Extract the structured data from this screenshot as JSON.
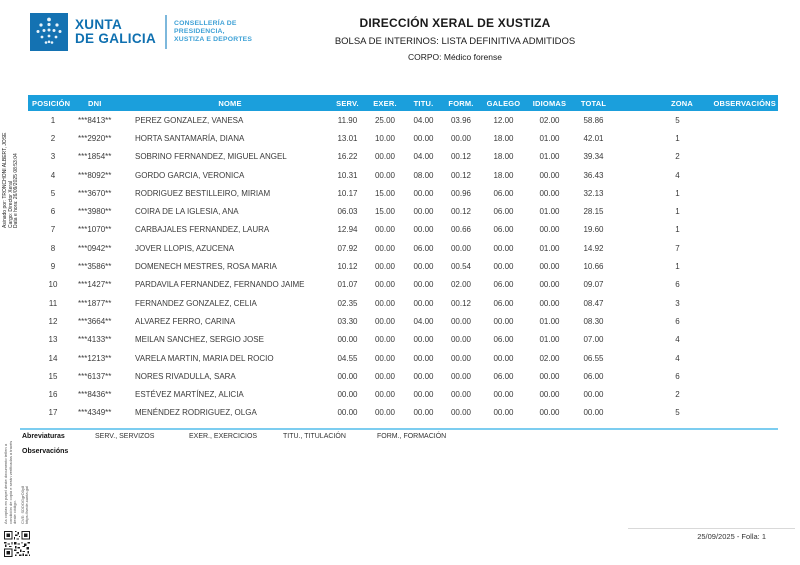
{
  "logo": {
    "brand_line1": "XUNTA",
    "brand_line2": "DE GALICIA",
    "department_lines": [
      "CONSELLERÍA DE",
      "PRESIDENCIA,",
      "XUSTIZA E DEPORTES"
    ]
  },
  "header": {
    "title": "DIRECCIÓN XERAL DE XUSTIZA",
    "subtitle": "BOLSA DE INTERINOS: LISTA DEFINITIVA ADMITIDOS",
    "corpo": "CORPO: Médico forense"
  },
  "signature": {
    "signed_by": "Asinado por: TRONCHONI ALBERT, JOSE",
    "role": "Cargo: Director Xeral",
    "datetime": "Data e hora: 26/09/2025 08:53:04"
  },
  "table": {
    "columns": [
      "POSICIÓN",
      "DNI",
      "NOME",
      "SERV.",
      "EXER.",
      "TITU.",
      "FORM.",
      "GALEGO",
      "IDIOMAS",
      "TOTAL",
      "",
      "ZONA",
      "OBSERVACIÓNS"
    ],
    "rows": [
      [
        "1",
        "***8413**",
        "PEREZ GONZALEZ, VANESA",
        "11.90",
        "25.00",
        "04.00",
        "03.96",
        "12.00",
        "02.00",
        "58.86",
        "",
        "5",
        ""
      ],
      [
        "2",
        "***2920**",
        "HORTA SANTAMARÍA, DIANA",
        "13.01",
        "10.00",
        "00.00",
        "00.00",
        "18.00",
        "01.00",
        "42.01",
        "",
        "1",
        ""
      ],
      [
        "3",
        "***1854**",
        "SOBRINO FERNANDEZ, MIGUEL ANGEL",
        "16.22",
        "00.00",
        "04.00",
        "00.12",
        "18.00",
        "01.00",
        "39.34",
        "",
        "2",
        ""
      ],
      [
        "4",
        "***8092**",
        "GORDO GARCIA, VERONICA",
        "10.31",
        "00.00",
        "08.00",
        "00.12",
        "18.00",
        "00.00",
        "36.43",
        "",
        "4",
        ""
      ],
      [
        "5",
        "***3670**",
        "RODRIGUEZ BESTILLEIRO, MIRIAM",
        "10.17",
        "15.00",
        "00.00",
        "00.96",
        "06.00",
        "00.00",
        "32.13",
        "",
        "1",
        ""
      ],
      [
        "6",
        "***3980**",
        "COIRA DE LA IGLESIA, ANA",
        "06.03",
        "15.00",
        "00.00",
        "00.12",
        "06.00",
        "01.00",
        "28.15",
        "",
        "1",
        ""
      ],
      [
        "7",
        "***1070**",
        "CARBAJALES FERNANDEZ, LAURA",
        "12.94",
        "00.00",
        "00.00",
        "00.66",
        "06.00",
        "00.00",
        "19.60",
        "",
        "1",
        ""
      ],
      [
        "8",
        "***0942**",
        "JOVER LLOPIS, AZUCENA",
        "07.92",
        "00.00",
        "06.00",
        "00.00",
        "00.00",
        "01.00",
        "14.92",
        "",
        "7",
        ""
      ],
      [
        "9",
        "***3586**",
        "DOMENECH MESTRES, ROSA MARIA",
        "10.12",
        "00.00",
        "00.00",
        "00.54",
        "00.00",
        "00.00",
        "10.66",
        "",
        "1",
        ""
      ],
      [
        "10",
        "***1427**",
        "PARDAVILA FERNANDEZ, FERNANDO JAIME",
        "01.07",
        "00.00",
        "00.00",
        "02.00",
        "06.00",
        "00.00",
        "09.07",
        "",
        "6",
        ""
      ],
      [
        "11",
        "***1877**",
        "FERNANDEZ GONZALEZ, CELIA",
        "02.35",
        "00.00",
        "00.00",
        "00.12",
        "06.00",
        "00.00",
        "08.47",
        "",
        "3",
        ""
      ],
      [
        "12",
        "***3664**",
        "ALVAREZ FERRO, CARINA",
        "03.30",
        "00.00",
        "04.00",
        "00.00",
        "00.00",
        "01.00",
        "08.30",
        "",
        "6",
        ""
      ],
      [
        "13",
        "***4133**",
        "MEILAN SANCHEZ, SERGIO JOSE",
        "00.00",
        "00.00",
        "00.00",
        "00.00",
        "06.00",
        "01.00",
        "07.00",
        "",
        "4",
        ""
      ],
      [
        "14",
        "***1213**",
        "VARELA MARTIN, MARIA DEL ROCIO",
        "04.55",
        "00.00",
        "00.00",
        "00.00",
        "00.00",
        "02.00",
        "06.55",
        "",
        "4",
        ""
      ],
      [
        "15",
        "***6137**",
        "NORES RIVADULLA, SARA",
        "00.00",
        "00.00",
        "00.00",
        "00.00",
        "06.00",
        "00.00",
        "06.00",
        "",
        "6",
        ""
      ],
      [
        "16",
        "***8436**",
        "ESTÉVEZ MARTÍNEZ, ALICIA",
        "00.00",
        "00.00",
        "00.00",
        "00.00",
        "00.00",
        "00.00",
        "00.00",
        "",
        "2",
        ""
      ],
      [
        "17",
        "***4349**",
        "MENÉNDEZ RODRIGUEZ, OLGA",
        "00.00",
        "00.00",
        "00.00",
        "00.00",
        "00.00",
        "00.00",
        "00.00",
        "",
        "5",
        ""
      ]
    ]
  },
  "footer": {
    "abbreviations_label": "Abreviaturas",
    "abbreviations": [
      "SERV., SERVIZOS",
      "EXER., EXERCICIOS",
      "TITU., TITULACIÓN",
      "FORM., FORMACIÓN"
    ],
    "observations_label": "Observacións",
    "page_info": "25/09/2025 - Folla: 1"
  },
  "legal": {
    "copy_notice": "As copias en papel deste documento teñen a condición de copia e serán verificadas a través deste código.",
    "cve": "CVE: SDDOGgrO0y8",
    "verify_url": "https://sede.xunta.gal"
  },
  "colors": {
    "table_header_bg": "#1b9fdc",
    "brand_blue": "#0f70b0",
    "department_blue": "#3ea1d6",
    "footer_rule_cyan": "#7ccdf0"
  }
}
